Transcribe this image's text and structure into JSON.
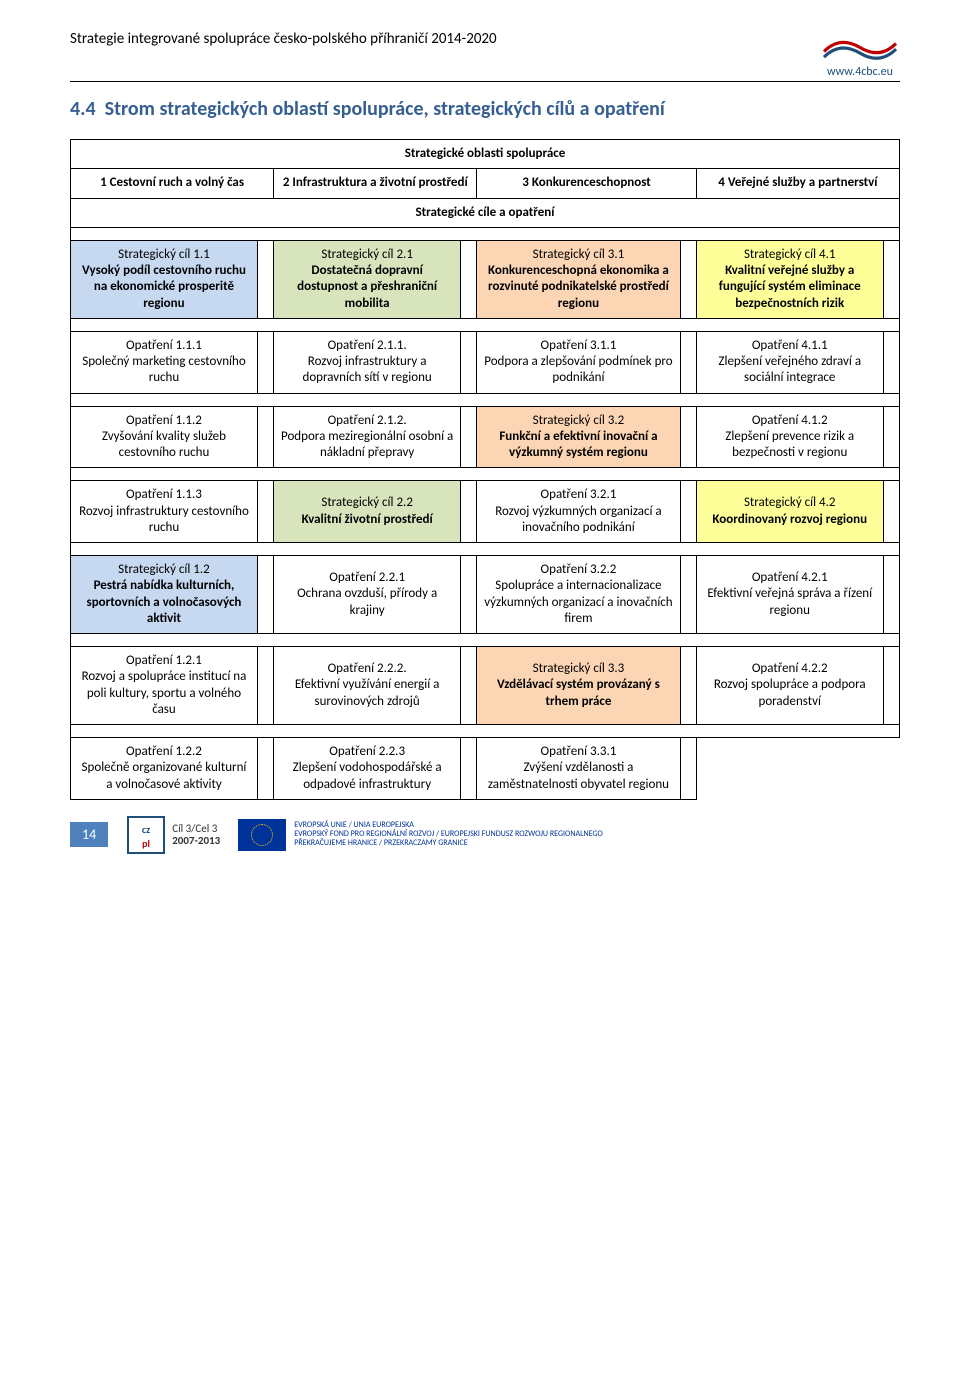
{
  "header": {
    "doc_title": "Strategie integrované spolupráce česko-polského příhraničí 2014-2020",
    "logo_url": "www.4cbc.eu"
  },
  "section": {
    "number": "4.4",
    "title": "Strom strategických oblastí spolupráce, strategických cílů a opatření"
  },
  "table": {
    "super_header": "Strategické oblasti spolupráce",
    "col_headers": [
      "1\nCestovní ruch a volný čas",
      "2\nInfrastruktura a životní prostředí",
      "3\nKonkurenceschopnost",
      "4\nVeřejné služby a partnerství"
    ],
    "sub_header": "Strategické cíle a opatření",
    "rows": [
      {
        "cells": [
          {
            "title": "Strategický cíl 1.1",
            "body": "Vysoký podíl cestovního ruchu na ekonomické prosperitě regionu",
            "bg": "blue"
          },
          {
            "title": "Strategický cíl 2.1",
            "body": "Dostatečná dopravní dostupnost a přeshraniční mobilita",
            "bg": "green"
          },
          {
            "title": "Strategický cíl 3.1",
            "body": "Konkurenceschopná ekonomika a rozvinuté podnikatelské prostředí regionu",
            "bg": "orange"
          },
          {
            "title": "Strategický cíl 4.1",
            "body": "Kvalitní veřejné služby a fungující systém eliminace bezpečnostních rizik",
            "bg": "yellow"
          }
        ]
      },
      {
        "cells": [
          {
            "title": "Opatření 1.1.1",
            "body": "Společný marketing cestovního ruchu",
            "bg": ""
          },
          {
            "title": "Opatření 2.1.1.",
            "body": "Rozvoj infrastruktury a dopravních sítí v regionu",
            "bg": ""
          },
          {
            "title": "Opatření 3.1.1",
            "body": "Podpora a zlepšování podmínek pro podnikání",
            "bg": ""
          },
          {
            "title": "Opatření 4.1.1",
            "body": "Zlepšení veřejného zdraví a sociální integrace",
            "bg": ""
          }
        ]
      },
      {
        "cells": [
          {
            "title": "Opatření 1.1.2",
            "body": "Zvyšování kvality služeb cestovního ruchu",
            "bg": ""
          },
          {
            "title": "Opatření 2.1.2.",
            "body": "Podpora meziregionální osobní a nákladní přepravy",
            "bg": ""
          },
          {
            "title": "Strategický cíl 3.2",
            "body": "Funkční a efektivní inovační a výzkumný systém regionu",
            "bg": "orange"
          },
          {
            "title": "Opatření 4.1.2",
            "body": "Zlepšení prevence rizik a bezpečnosti v regionu",
            "bg": ""
          }
        ]
      },
      {
        "cells": [
          {
            "title": "Opatření 1.1.3",
            "body": "Rozvoj infrastruktury cestovního ruchu",
            "bg": ""
          },
          {
            "title": "Strategický cíl 2.2",
            "body": "Kvalitní životní prostředí",
            "bg": "green"
          },
          {
            "title": "Opatření 3.2.1",
            "body": "Rozvoj výzkumných organizací a inovačního podnikání",
            "bg": ""
          },
          {
            "title": "Strategický cíl 4.2",
            "body": "Koordinovaný rozvoj regionu",
            "bg": "yellow"
          }
        ]
      },
      {
        "cells": [
          {
            "title": "Strategický cíl 1.2",
            "body": "Pestrá nabídka kulturních, sportovních a volnočasových aktivit",
            "bg": "blue"
          },
          {
            "title": "Opatření 2.2.1",
            "body": "Ochrana ovzduší, přírody a krajiny",
            "bg": ""
          },
          {
            "title": "Opatření 3.2.2",
            "body": "Spolupráce a internacionalizace výzkumných organizací a inovačních firem",
            "bg": ""
          },
          {
            "title": "Opatření 4.2.1",
            "body": "Efektivní veřejná správa a řízení regionu",
            "bg": ""
          }
        ]
      },
      {
        "cells": [
          {
            "title": "Opatření 1.2.1",
            "body": "Rozvoj a spolupráce institucí na poli kultury, sportu a volného času",
            "bg": ""
          },
          {
            "title": "Opatření 2.2.2.",
            "body": "Efektivní využívání energií a surovinových zdrojů",
            "bg": ""
          },
          {
            "title": "Strategický cíl 3.3",
            "body": "Vzdělávací systém provázaný s trhem práce",
            "bg": "orange"
          },
          {
            "title": "Opatření 4.2.2",
            "body": "Rozvoj spolupráce a podpora poradenství",
            "bg": ""
          }
        ]
      },
      {
        "cells": [
          {
            "title": "Opatření 1.2.2",
            "body": "Společně organizované kulturní a volnočasové aktivity",
            "bg": ""
          },
          {
            "title": "Opatření 2.2.3",
            "body": "Zlepšení vodohospodářské a odpadové infrastruktury",
            "bg": ""
          },
          {
            "title": "Opatření 3.3.1",
            "body": "Zvýšení vzdělanosti a zaměstnatelnosti obyvatel regionu",
            "bg": ""
          },
          {
            "title": "",
            "body": "",
            "bg": "",
            "empty": true
          }
        ]
      }
    ]
  },
  "footer": {
    "page_num": "14",
    "prog_line1": "Cíl 3/Cel 3",
    "prog_line2": "2007-2013",
    "eu_text": "EVROPSKÁ UNIE / UNIA EUROPEJSKA\nEVROPSKÝ FOND PRO REGIONÁLNÍ ROZVOJ / EUROPEJSKI FUNDUSZ ROZWOJU REGIONALNEGO\nPŘEKRAČUJEME HRANICE / PRZEKRACZAMY GRANICE"
  },
  "colors": {
    "blue": "#c6d9f1",
    "green": "#d7e4bc",
    "orange": "#fcd5b4",
    "yellow": "#ffff99",
    "heading": "#365f91",
    "accent": "#4f81bd"
  }
}
